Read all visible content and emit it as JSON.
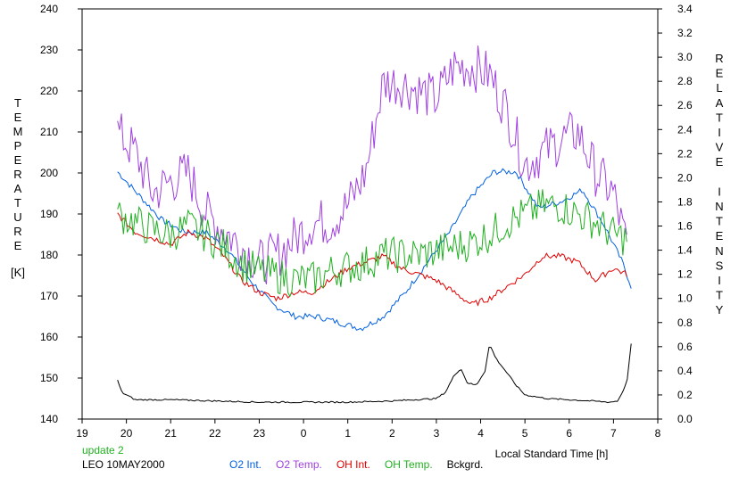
{
  "chart_data": {
    "type": "line",
    "xlabel": "Local Standard Time [h]",
    "x_range": [
      19,
      8
    ],
    "x_ticks": [
      "19",
      "20",
      "21",
      "22",
      "23",
      "0",
      "1",
      "2",
      "3",
      "4",
      "5",
      "6",
      "7",
      "8"
    ],
    "left_axis": {
      "label": "TEMPERATURE",
      "unit": "[K]",
      "range": [
        140,
        240
      ],
      "ticks": [
        "140",
        "150",
        "160",
        "170",
        "180",
        "190",
        "200",
        "210",
        "220",
        "230",
        "240"
      ]
    },
    "right_axis": {
      "label": "RELATIVE INTENSITY",
      "range": [
        0.0,
        3.4
      ],
      "ticks": [
        "0.0",
        "0.2",
        "0.4",
        "0.6",
        "0.8",
        "1.0",
        "1.2",
        "1.4",
        "1.6",
        "1.8",
        "2.0",
        "2.2",
        "2.4",
        "2.6",
        "2.8",
        "3.0",
        "3.2",
        "3.4"
      ]
    },
    "grid": false,
    "legend": "bottom",
    "series": [
      {
        "name": "O2 Int.",
        "axis": "right",
        "color": "#0060e0",
        "noise": 0.025,
        "x": [
          19.8,
          20.3,
          20.8,
          21.3,
          21.8,
          22.3,
          22.8,
          23.3,
          23.8,
          24.3,
          24.8,
          25.3,
          25.8,
          26.3,
          26.8,
          27.3,
          27.8,
          28.3,
          28.8,
          29.3,
          29.8,
          30.3,
          30.8,
          31.2,
          31.4
        ],
        "y": [
          2.05,
          1.85,
          1.65,
          1.55,
          1.55,
          1.4,
          1.15,
          0.95,
          0.85,
          0.85,
          0.8,
          0.75,
          0.85,
          1.05,
          1.3,
          1.55,
          1.85,
          2.05,
          2.05,
          1.75,
          1.8,
          1.9,
          1.6,
          1.3,
          1.1
        ]
      },
      {
        "name": "O2 Temp.",
        "axis": "left",
        "color": "#a040e0",
        "noise": 6,
        "x": [
          19.8,
          20.2,
          20.6,
          21.0,
          21.4,
          21.8,
          22.2,
          22.6,
          23.0,
          23.4,
          23.8,
          24.2,
          24.6,
          25.0,
          25.4,
          25.8,
          26.2,
          26.6,
          27.0,
          27.4,
          27.8,
          28.2,
          28.6,
          29.0,
          29.4,
          29.8,
          30.2,
          30.6,
          31.0,
          31.3
        ],
        "y": [
          210,
          205,
          195,
          198,
          200,
          190,
          186,
          182,
          178,
          180,
          184,
          188,
          188,
          192,
          200,
          222,
          222,
          220,
          218,
          226,
          226,
          224,
          215,
          202,
          205,
          208,
          210,
          200,
          195,
          182
        ]
      },
      {
        "name": "OH Int.",
        "axis": "right",
        "color": "#e00000",
        "noise": 0.025,
        "x": [
          19.8,
          20.2,
          20.6,
          21.0,
          21.4,
          21.8,
          22.2,
          22.6,
          23.0,
          23.4,
          23.8,
          24.2,
          24.6,
          25.0,
          25.4,
          25.8,
          26.2,
          26.6,
          27.0,
          27.4,
          27.8,
          28.2,
          28.6,
          29.0,
          29.4,
          29.8,
          30.2,
          30.6,
          31.0,
          31.3
        ],
        "y": [
          1.7,
          1.55,
          1.5,
          1.45,
          1.55,
          1.5,
          1.35,
          1.15,
          1.05,
          1.0,
          1.05,
          1.05,
          1.15,
          1.25,
          1.3,
          1.35,
          1.25,
          1.2,
          1.15,
          1.05,
          0.95,
          1.0,
          1.1,
          1.2,
          1.35,
          1.35,
          1.3,
          1.15,
          1.25,
          1.2
        ]
      },
      {
        "name": "OH Temp.",
        "axis": "left",
        "color": "#20b020",
        "noise": 4.5,
        "x": [
          19.8,
          20.2,
          20.6,
          21.0,
          21.4,
          21.8,
          22.2,
          22.6,
          23.0,
          23.4,
          23.8,
          24.2,
          24.6,
          25.0,
          25.4,
          25.8,
          26.2,
          26.6,
          27.0,
          27.4,
          27.8,
          28.2,
          28.6,
          29.0,
          29.4,
          29.8,
          30.2,
          30.6,
          31.0,
          31.3
        ],
        "y": [
          190,
          188,
          186,
          185,
          187,
          185,
          182,
          178,
          176,
          175,
          174,
          174,
          176,
          177,
          178,
          180,
          180,
          180,
          181,
          182,
          183,
          185,
          188,
          190,
          192,
          192,
          190,
          188,
          185,
          184
        ]
      },
      {
        "name": "Bckgrd.",
        "axis": "right",
        "color": "#000000",
        "noise": 0.006,
        "x": [
          19.8,
          19.9,
          20.2,
          21.0,
          22.0,
          23.0,
          24.0,
          25.0,
          26.0,
          27.0,
          27.2,
          27.4,
          27.55,
          27.7,
          27.9,
          28.1,
          28.2,
          28.35,
          28.6,
          28.8,
          29.0,
          29.5,
          30.0,
          30.5,
          30.9,
          31.1,
          31.3,
          31.4
        ],
        "y": [
          0.32,
          0.22,
          0.16,
          0.16,
          0.15,
          0.14,
          0.14,
          0.14,
          0.15,
          0.17,
          0.22,
          0.36,
          0.42,
          0.3,
          0.28,
          0.4,
          0.62,
          0.5,
          0.38,
          0.28,
          0.2,
          0.17,
          0.16,
          0.15,
          0.14,
          0.15,
          0.3,
          0.62
        ]
      }
    ]
  },
  "footer": {
    "update_text": "update 2",
    "update_color": "#20b020",
    "station_date": "LEO 10MAY2000"
  }
}
